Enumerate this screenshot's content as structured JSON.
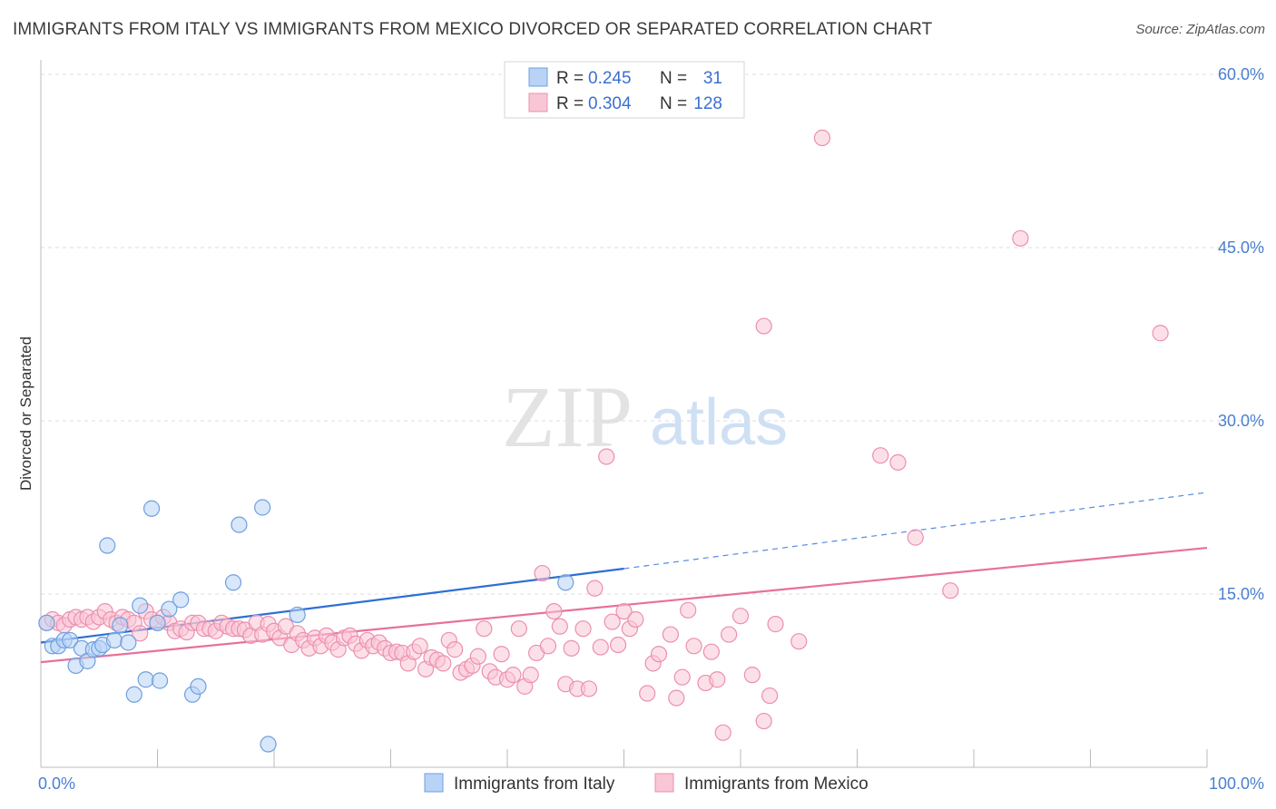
{
  "title": "IMMIGRANTS FROM ITALY VS IMMIGRANTS FROM MEXICO DIVORCED OR SEPARATED CORRELATION CHART",
  "source": "Source: ZipAtlas.com",
  "watermark": {
    "zip": "ZIP",
    "atlas": "atlas"
  },
  "colors": {
    "italy_fill": "#b8d3f5",
    "italy_stroke": "#6f9fe0",
    "italy_line": "#2d6fd4",
    "mexico_fill": "#f9c6d6",
    "mexico_stroke": "#ec8fb0",
    "mexico_line": "#e8709a",
    "tick_text": "#4a7fd0",
    "grid": "#dddddd"
  },
  "legend": {
    "r_label": "R =",
    "n_label": "N =",
    "rows": [
      {
        "series": "Immigrants from Italy",
        "r": "0.245",
        "n": "31"
      },
      {
        "series": "Immigrants from Mexico",
        "r": "0.304",
        "n": "128"
      }
    ]
  },
  "chart_data": {
    "type": "scatter",
    "ylabel": "Divorced or Separated",
    "xlim": [
      0,
      100
    ],
    "ylim": [
      0,
      60
    ],
    "y_ticks": [
      {
        "value": 15,
        "label": "15.0%"
      },
      {
        "value": 30,
        "label": "30.0%"
      },
      {
        "value": 45,
        "label": "45.0%"
      },
      {
        "value": 60,
        "label": "60.0%"
      }
    ],
    "x_ticks": [
      {
        "value": 0,
        "label": "0.0%"
      },
      {
        "value": 100,
        "label": "100.0%"
      }
    ],
    "grid": "horizontal dashed",
    "legend_position": "top-center",
    "series": [
      {
        "name": "Immigrants from Italy",
        "trend": {
          "x0": 0,
          "y0": 10.8,
          "x1": 50,
          "y1": 17.2,
          "dashed_to_x": 100,
          "dashed_to_y": 23.8
        },
        "points": [
          [
            0.5,
            12.5
          ],
          [
            1,
            10.5
          ],
          [
            1.5,
            10.5
          ],
          [
            2,
            11
          ],
          [
            2.5,
            11
          ],
          [
            3,
            8.8
          ],
          [
            3.5,
            10.3
          ],
          [
            4,
            9.2
          ],
          [
            4.5,
            10.2
          ],
          [
            5,
            10.3
          ],
          [
            5.3,
            10.6
          ],
          [
            5.7,
            19.2
          ],
          [
            6.3,
            11
          ],
          [
            6.8,
            12.3
          ],
          [
            7.5,
            10.8
          ],
          [
            8,
            6.3
          ],
          [
            8.5,
            14
          ],
          [
            9,
            7.6
          ],
          [
            9.5,
            22.4
          ],
          [
            10,
            12.5
          ],
          [
            10.2,
            7.5
          ],
          [
            11,
            13.7
          ],
          [
            12,
            14.5
          ],
          [
            13,
            6.3
          ],
          [
            13.5,
            7
          ],
          [
            16.5,
            16
          ],
          [
            17,
            21
          ],
          [
            19,
            22.5
          ],
          [
            19.5,
            2
          ],
          [
            22,
            13.2
          ],
          [
            45,
            16
          ]
        ]
      },
      {
        "name": "Immigrants from Mexico",
        "trend": {
          "x0": 0,
          "y0": 9.1,
          "x1": 100,
          "y1": 19
        },
        "points": [
          [
            0.5,
            12.5
          ],
          [
            1,
            12.8
          ],
          [
            1.5,
            12.5
          ],
          [
            2,
            12.3
          ],
          [
            2.5,
            12.8
          ],
          [
            3,
            13
          ],
          [
            3.5,
            12.8
          ],
          [
            4,
            13
          ],
          [
            4.5,
            12.6
          ],
          [
            5,
            13
          ],
          [
            5.5,
            13.5
          ],
          [
            6,
            12.8
          ],
          [
            6.5,
            12.5
          ],
          [
            7,
            13
          ],
          [
            7.5,
            12.8
          ],
          [
            8,
            12.5
          ],
          [
            8.5,
            11.6
          ],
          [
            9,
            13.5
          ],
          [
            9.5,
            12.8
          ],
          [
            10,
            12.5
          ],
          [
            10.5,
            13
          ],
          [
            11,
            12.5
          ],
          [
            11.5,
            11.8
          ],
          [
            12,
            12
          ],
          [
            12.5,
            11.7
          ],
          [
            13,
            12.5
          ],
          [
            13.5,
            12.5
          ],
          [
            14,
            12
          ],
          [
            14.5,
            12
          ],
          [
            15,
            11.8
          ],
          [
            15.5,
            12.5
          ],
          [
            16,
            12.2
          ],
          [
            16.5,
            12
          ],
          [
            17,
            12
          ],
          [
            17.5,
            11.9
          ],
          [
            18,
            11.4
          ],
          [
            18.5,
            12.5
          ],
          [
            19,
            11.5
          ],
          [
            19.5,
            12.4
          ],
          [
            20,
            11.8
          ],
          [
            20.5,
            11.2
          ],
          [
            21,
            12.2
          ],
          [
            21.5,
            10.6
          ],
          [
            22,
            11.6
          ],
          [
            22.5,
            11
          ],
          [
            23,
            10.3
          ],
          [
            23.5,
            11.2
          ],
          [
            24,
            10.5
          ],
          [
            24.5,
            11.4
          ],
          [
            25,
            10.8
          ],
          [
            25.5,
            10.2
          ],
          [
            26,
            11.2
          ],
          [
            26.5,
            11.4
          ],
          [
            27,
            10.7
          ],
          [
            27.5,
            10.1
          ],
          [
            28,
            11
          ],
          [
            28.5,
            10.5
          ],
          [
            29,
            10.8
          ],
          [
            29.5,
            10.3
          ],
          [
            30,
            9.9
          ],
          [
            30.5,
            10
          ],
          [
            31,
            9.9
          ],
          [
            31.5,
            9
          ],
          [
            32,
            10
          ],
          [
            32.5,
            10.5
          ],
          [
            33,
            8.5
          ],
          [
            33.5,
            9.5
          ],
          [
            34,
            9.3
          ],
          [
            34.5,
            9
          ],
          [
            35,
            11
          ],
          [
            35.5,
            10.2
          ],
          [
            36,
            8.2
          ],
          [
            36.5,
            8.5
          ],
          [
            37,
            8.8
          ],
          [
            37.5,
            9.6
          ],
          [
            38,
            12
          ],
          [
            38.5,
            8.3
          ],
          [
            39,
            7.8
          ],
          [
            39.5,
            9.8
          ],
          [
            40,
            7.6
          ],
          [
            40.5,
            8
          ],
          [
            41,
            12
          ],
          [
            41.5,
            7
          ],
          [
            42,
            8
          ],
          [
            42.5,
            9.9
          ],
          [
            43,
            16.8
          ],
          [
            43.5,
            10.5
          ],
          [
            44,
            13.5
          ],
          [
            44.5,
            12.2
          ],
          [
            45,
            7.2
          ],
          [
            45.5,
            10.3
          ],
          [
            46,
            6.8
          ],
          [
            46.5,
            12
          ],
          [
            47,
            6.8
          ],
          [
            47.5,
            15.5
          ],
          [
            48,
            10.4
          ],
          [
            48.5,
            26.9
          ],
          [
            49,
            12.6
          ],
          [
            49.5,
            10.6
          ],
          [
            50,
            13.5
          ],
          [
            50.5,
            12
          ],
          [
            51,
            12.8
          ],
          [
            52,
            6.4
          ],
          [
            52.5,
            9
          ],
          [
            53,
            9.8
          ],
          [
            54,
            11.5
          ],
          [
            54.5,
            6
          ],
          [
            55,
            7.8
          ],
          [
            55.5,
            13.6
          ],
          [
            56,
            10.5
          ],
          [
            57,
            7.3
          ],
          [
            57.5,
            10
          ],
          [
            58,
            7.6
          ],
          [
            58.5,
            3
          ],
          [
            59,
            11.5
          ],
          [
            60,
            13.1
          ],
          [
            61,
            8
          ],
          [
            62,
            4
          ],
          [
            62.5,
            6.2
          ],
          [
            63,
            12.4
          ],
          [
            62,
            38.2
          ],
          [
            65,
            10.9
          ],
          [
            67,
            54.5
          ],
          [
            72,
            27
          ],
          [
            73.5,
            26.4
          ],
          [
            75,
            19.9
          ],
          [
            78,
            15.3
          ],
          [
            84,
            45.8
          ],
          [
            96,
            37.6
          ]
        ]
      }
    ]
  }
}
